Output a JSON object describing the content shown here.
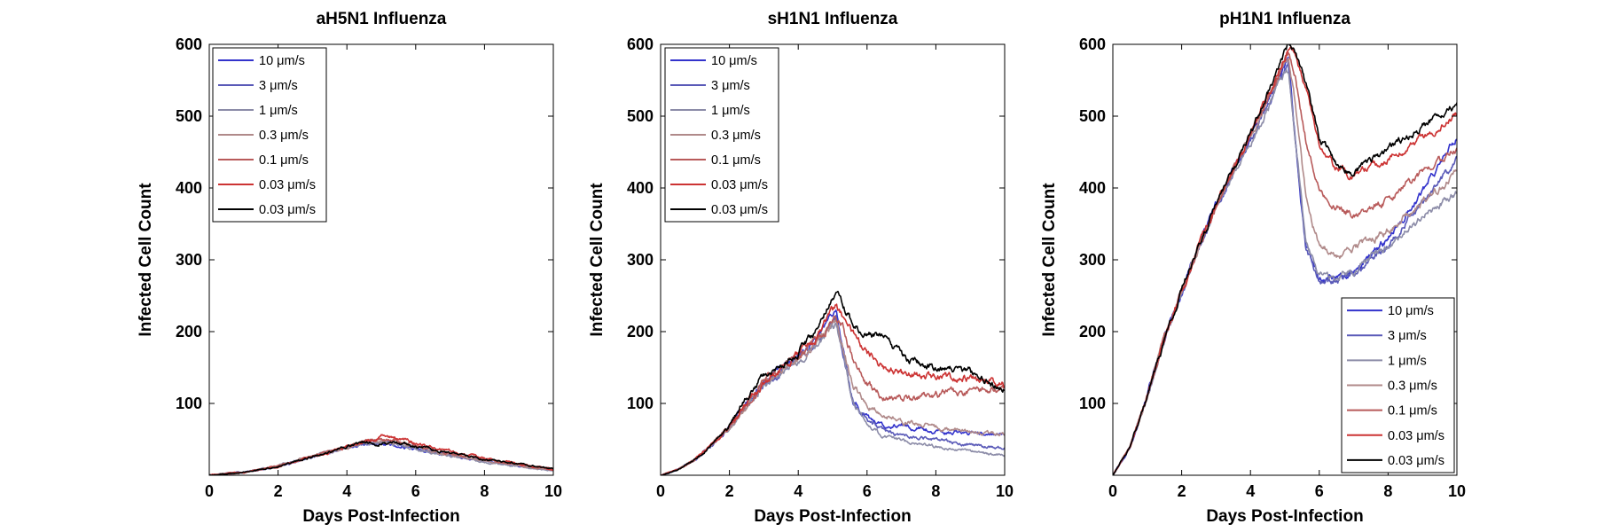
{
  "colors": {
    "10 μm/s": "#3333cc",
    "3 μm/s": "#5a5ab8",
    "1 μm/s": "#8c8ca8",
    "0.3 μm/s": "#b08a8a",
    "0.1 μm/s": "#b85a5a",
    "0.03 μm/s (red)": "#cc3333",
    "0.03 μm/s (black)": "#000000"
  },
  "chart_data": [
    {
      "type": "line",
      "title": "aH5N1 Influenza",
      "xlabel": "Days Post-Infection",
      "ylabel": "Infected Cell Count",
      "xlim": [
        0,
        10
      ],
      "ylim": [
        0,
        600
      ],
      "xticks": [
        "0",
        "2",
        "4",
        "6",
        "8",
        "10"
      ],
      "yticks": [
        "100",
        "200",
        "300",
        "400",
        "500",
        "600"
      ],
      "legend_position": "top-left",
      "series": [
        {
          "name": "10 μm/s",
          "color": "#3333cc",
          "x": [
            0,
            1,
            2,
            3,
            4,
            4.5,
            5,
            5.5,
            6,
            7,
            8,
            9,
            10
          ],
          "y": [
            0,
            4,
            12,
            26,
            38,
            43,
            45,
            42,
            37,
            28,
            20,
            13,
            7
          ]
        },
        {
          "name": "3 μm/s",
          "color": "#5a5ab8",
          "x": [
            0,
            1,
            2,
            3,
            4,
            4.5,
            5,
            5.5,
            6,
            7,
            8,
            9,
            10
          ],
          "y": [
            0,
            4,
            12,
            26,
            38,
            44,
            46,
            43,
            38,
            28,
            20,
            13,
            7
          ]
        },
        {
          "name": "1 μm/s",
          "color": "#8c8ca8",
          "x": [
            0,
            1,
            2,
            3,
            4,
            4.5,
            5,
            5.5,
            6,
            7,
            8,
            9,
            10
          ],
          "y": [
            0,
            4,
            13,
            27,
            39,
            44,
            46,
            42,
            36,
            27,
            19,
            12,
            6
          ]
        },
        {
          "name": "0.3 μm/s",
          "color": "#b08a8a",
          "x": [
            0,
            1,
            2,
            3,
            4,
            4.5,
            5,
            5.5,
            6,
            7,
            8,
            9,
            10
          ],
          "y": [
            0,
            4,
            12,
            27,
            39,
            45,
            48,
            44,
            38,
            28,
            20,
            13,
            7
          ]
        },
        {
          "name": "0.1 μm/s",
          "color": "#b85a5a",
          "x": [
            0,
            1,
            2,
            3,
            4,
            4.5,
            5,
            5.5,
            6,
            7,
            8,
            9,
            10
          ],
          "y": [
            0,
            4,
            13,
            27,
            40,
            47,
            50,
            47,
            41,
            30,
            22,
            15,
            8
          ]
        },
        {
          "name": "0.03 μm/s",
          "color": "#cc3333",
          "x": [
            0,
            1,
            2,
            3,
            4,
            4.5,
            5,
            5.5,
            6,
            7,
            8,
            9,
            10
          ],
          "y": [
            0,
            4,
            12,
            26,
            40,
            48,
            55,
            52,
            45,
            33,
            24,
            16,
            8
          ]
        },
        {
          "name": "0.03 μm/s",
          "color": "#000000",
          "x": [
            0,
            1,
            2,
            3,
            4,
            4.5,
            5,
            5.5,
            6,
            7,
            8,
            9,
            10
          ],
          "y": [
            0,
            4,
            12,
            26,
            39,
            44,
            45,
            44,
            40,
            31,
            23,
            16,
            9
          ]
        }
      ]
    },
    {
      "type": "line",
      "title": "sH1N1 Influenza",
      "xlabel": "Days Post-Infection",
      "ylabel": "Infected Cell Count",
      "xlim": [
        0,
        10
      ],
      "ylim": [
        0,
        600
      ],
      "xticks": [
        "0",
        "2",
        "4",
        "6",
        "8",
        "10"
      ],
      "yticks": [
        "100",
        "200",
        "300",
        "400",
        "500",
        "600"
      ],
      "legend_position": "top-left",
      "series": [
        {
          "name": "10 μm/s",
          "color": "#3333cc",
          "x": [
            0,
            0.5,
            1,
            1.5,
            2,
            2.5,
            3,
            3.5,
            4,
            4.5,
            5,
            5.1,
            5.3,
            5.6,
            6,
            6.5,
            7,
            8,
            9,
            10
          ],
          "y": [
            0,
            8,
            22,
            42,
            68,
            100,
            130,
            148,
            165,
            185,
            220,
            228,
            175,
            105,
            80,
            68,
            70,
            62,
            58,
            55
          ]
        },
        {
          "name": "3 μm/s",
          "color": "#5a5ab8",
          "x": [
            0,
            0.5,
            1,
            1.5,
            2,
            2.5,
            3,
            3.5,
            4,
            4.5,
            5,
            5.1,
            5.3,
            5.6,
            6,
            6.5,
            7,
            8,
            9,
            10
          ],
          "y": [
            0,
            8,
            22,
            42,
            68,
            98,
            128,
            145,
            162,
            182,
            215,
            222,
            170,
            100,
            75,
            60,
            55,
            50,
            42,
            38
          ]
        },
        {
          "name": "1 μm/s",
          "color": "#8c8ca8",
          "x": [
            0,
            0.5,
            1,
            1.5,
            2,
            2.5,
            3,
            3.5,
            4,
            4.5,
            5,
            5.1,
            5.3,
            5.6,
            6,
            6.5,
            7,
            8,
            9,
            10
          ],
          "y": [
            0,
            8,
            22,
            42,
            66,
            96,
            125,
            142,
            160,
            178,
            205,
            210,
            168,
            98,
            70,
            55,
            48,
            40,
            33,
            28
          ]
        },
        {
          "name": "0.3 μm/s",
          "color": "#b08a8a",
          "x": [
            0,
            0.5,
            1,
            1.5,
            2,
            2.5,
            3,
            3.5,
            4,
            4.5,
            5,
            5.1,
            5.3,
            5.6,
            6,
            6.5,
            7,
            8,
            9,
            10
          ],
          "y": [
            0,
            8,
            22,
            42,
            68,
            98,
            128,
            146,
            163,
            183,
            212,
            218,
            180,
            125,
            100,
            85,
            75,
            68,
            60,
            55
          ]
        },
        {
          "name": "0.1 μm/s",
          "color": "#b85a5a",
          "x": [
            0,
            0.5,
            1,
            1.5,
            2,
            2.5,
            3,
            3.5,
            4,
            4.5,
            5,
            5.1,
            5.3,
            5.6,
            6,
            6.5,
            7,
            8,
            9,
            10
          ],
          "y": [
            0,
            8,
            22,
            42,
            68,
            98,
            130,
            148,
            165,
            185,
            215,
            222,
            205,
            160,
            128,
            110,
            108,
            112,
            118,
            120
          ]
        },
        {
          "name": "0.03 μm/s",
          "color": "#cc3333",
          "x": [
            0,
            0.5,
            1,
            1.5,
            2,
            2.5,
            3,
            3.5,
            4,
            4.5,
            5,
            5.1,
            5.3,
            5.6,
            6,
            6.5,
            7,
            8,
            9,
            10
          ],
          "y": [
            0,
            8,
            22,
            42,
            68,
            100,
            130,
            148,
            168,
            190,
            228,
            235,
            220,
            195,
            170,
            150,
            140,
            138,
            135,
            125
          ]
        },
        {
          "name": "0.03 μm/s",
          "color": "#000000",
          "x": [
            0,
            0.5,
            1,
            1.5,
            2,
            2.5,
            3,
            3.5,
            4,
            4.5,
            5,
            5.1,
            5.3,
            5.6,
            6,
            6.5,
            7,
            8,
            9,
            10
          ],
          "y": [
            0,
            8,
            22,
            42,
            70,
            108,
            140,
            155,
            172,
            200,
            252,
            255,
            240,
            210,
            195,
            195,
            165,
            148,
            145,
            118
          ]
        }
      ]
    },
    {
      "type": "line",
      "title": "pH1N1 Influenza",
      "xlabel": "Days Post-Infection",
      "ylabel": "Infected Cell Count",
      "xlim": [
        0,
        10
      ],
      "ylim": [
        0,
        600
      ],
      "xticks": [
        "0",
        "2",
        "4",
        "6",
        "8",
        "10"
      ],
      "yticks": [
        "100",
        "200",
        "300",
        "400",
        "500",
        "600"
      ],
      "legend_position": "bottom-right",
      "series": [
        {
          "name": "10 μm/s",
          "color": "#3333cc",
          "x": [
            0,
            0.5,
            1,
            1.5,
            2,
            2.5,
            3,
            3.5,
            4,
            4.5,
            5,
            5.1,
            5.3,
            5.6,
            6,
            6.5,
            7,
            8,
            9,
            10
          ],
          "y": [
            0,
            40,
            110,
            190,
            255,
            320,
            375,
            425,
            470,
            520,
            570,
            580,
            470,
            320,
            270,
            275,
            285,
            330,
            395,
            470
          ]
        },
        {
          "name": "3 μm/s",
          "color": "#5a5ab8",
          "x": [
            0,
            0.5,
            1,
            1.5,
            2,
            2.5,
            3,
            3.5,
            4,
            4.5,
            5,
            5.1,
            5.3,
            5.6,
            6,
            6.5,
            7,
            8,
            9,
            10
          ],
          "y": [
            0,
            40,
            110,
            190,
            255,
            320,
            375,
            425,
            465,
            515,
            562,
            570,
            465,
            320,
            268,
            272,
            280,
            320,
            380,
            440
          ]
        },
        {
          "name": "1 μm/s",
          "color": "#8c8ca8",
          "x": [
            0,
            0.5,
            1,
            1.5,
            2,
            2.5,
            3,
            3.5,
            4,
            4.5,
            5,
            5.1,
            5.3,
            5.6,
            6,
            6.5,
            7,
            8,
            9,
            10
          ],
          "y": [
            0,
            40,
            110,
            190,
            255,
            318,
            372,
            420,
            462,
            510,
            558,
            565,
            470,
            330,
            275,
            278,
            285,
            320,
            360,
            395
          ]
        },
        {
          "name": "0.3 μm/s",
          "color": "#b08a8a",
          "x": [
            0,
            0.5,
            1,
            1.5,
            2,
            2.5,
            3,
            3.5,
            4,
            4.5,
            5,
            5.1,
            5.3,
            5.6,
            6,
            6.5,
            7,
            8,
            9,
            10
          ],
          "y": [
            0,
            40,
            110,
            190,
            255,
            320,
            375,
            425,
            470,
            522,
            575,
            580,
            520,
            390,
            320,
            305,
            315,
            340,
            380,
            420
          ]
        },
        {
          "name": "0.1 μm/s",
          "color": "#b85a5a",
          "x": [
            0,
            0.5,
            1,
            1.5,
            2,
            2.5,
            3,
            3.5,
            4,
            4.5,
            5,
            5.1,
            5.3,
            5.6,
            6,
            6.5,
            7,
            8,
            9,
            10
          ],
          "y": [
            0,
            40,
            110,
            190,
            255,
            320,
            375,
            425,
            472,
            525,
            580,
            585,
            555,
            470,
            395,
            370,
            362,
            385,
            420,
            455
          ]
        },
        {
          "name": "0.03 μm/s",
          "color": "#cc3333",
          "x": [
            0,
            0.5,
            1,
            1.5,
            2,
            2.5,
            3,
            3.5,
            4,
            4.5,
            5,
            5.1,
            5.3,
            5.6,
            6,
            6.5,
            7,
            8,
            9,
            10
          ],
          "y": [
            0,
            40,
            110,
            190,
            255,
            320,
            375,
            425,
            472,
            528,
            585,
            598,
            590,
            540,
            460,
            430,
            418,
            440,
            470,
            500
          ]
        },
        {
          "name": "0.03 μm/s",
          "color": "#000000",
          "x": [
            0,
            0.5,
            1,
            1.5,
            2,
            2.5,
            3,
            3.5,
            4,
            4.5,
            5,
            5.1,
            5.3,
            5.6,
            6,
            6.5,
            7,
            8,
            9,
            10
          ],
          "y": [
            0,
            40,
            110,
            190,
            258,
            322,
            378,
            428,
            478,
            530,
            590,
            600,
            592,
            545,
            470,
            435,
            420,
            455,
            485,
            515
          ]
        }
      ]
    }
  ]
}
